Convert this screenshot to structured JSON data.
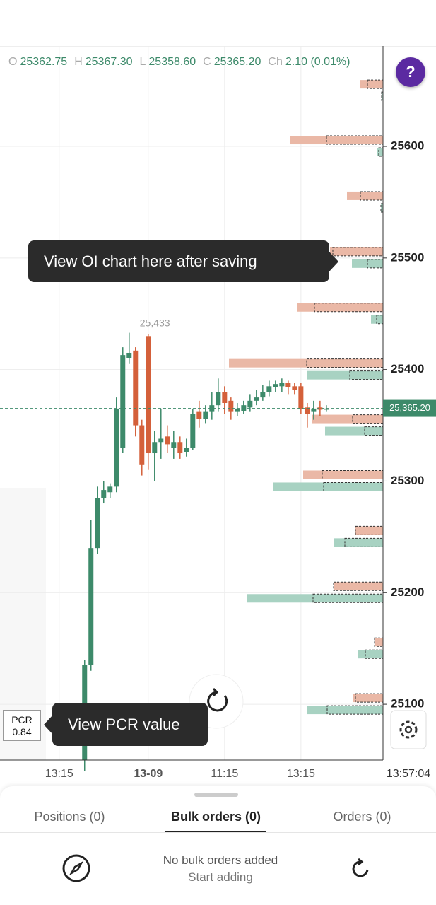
{
  "header": {
    "ohlc": [
      {
        "key": "O",
        "value": "25362.75"
      },
      {
        "key": "H",
        "value": "25367.30"
      },
      {
        "key": "L",
        "value": "25358.60"
      },
      {
        "key": "C",
        "value": "25365.20"
      },
      {
        "key": "Ch",
        "value": "2.10 (0.01%)"
      }
    ],
    "help": "?"
  },
  "chart_data": {
    "type": "candlestick",
    "open": [
      25050,
      25135,
      25240,
      25285,
      25290,
      25295,
      25330,
      25410,
      25417,
      25350,
      25430,
      25325,
      25335,
      25340,
      25330,
      25335,
      25326,
      25330,
      25362,
      25356,
      25362,
      25368,
      25380,
      25372,
      25362,
      25363,
      25366,
      25372,
      25375,
      25380,
      25384,
      25385,
      25388,
      25385,
      25385,
      25366,
      25362,
      25366,
      25364
    ],
    "high": [
      25140,
      25265,
      25295,
      25300,
      25298,
      25375,
      25420,
      25433,
      25420,
      25355,
      25432,
      25345,
      25365,
      25350,
      25345,
      25340,
      25338,
      25365,
      25372,
      25368,
      25380,
      25392,
      25385,
      25375,
      25370,
      25372,
      25378,
      25382,
      25386,
      25390,
      25390,
      25392,
      25390,
      25388,
      25388,
      25370,
      25372,
      25372,
      25368
    ],
    "low": [
      25040,
      25130,
      25235,
      25280,
      25285,
      25290,
      25325,
      25405,
      25340,
      25305,
      25310,
      25300,
      25320,
      25325,
      25320,
      25320,
      25322,
      25328,
      25348,
      25352,
      25355,
      25362,
      25360,
      25355,
      25358,
      25360,
      25362,
      25368,
      25372,
      25376,
      25380,
      25380,
      25378,
      25378,
      25360,
      25348,
      25355,
      25358,
      25362
    ],
    "close": [
      25135,
      25240,
      25285,
      25292,
      25295,
      25365,
      25413,
      25415,
      25350,
      25315,
      25325,
      25335,
      25338,
      25333,
      25335,
      25325,
      25330,
      25360,
      25356,
      25362,
      25368,
      25380,
      25370,
      25362,
      25365,
      25368,
      25372,
      25375,
      25380,
      25385,
      25387,
      25388,
      25384,
      25382,
      25365,
      25360,
      25365,
      25364,
      25365
    ],
    "up_color": "#3d8a6a",
    "down_color": "#d4603a",
    "ylim": [
      25050,
      25690
    ],
    "yticks": [
      {
        "value": 25100,
        "label": "25100"
      },
      {
        "value": 25200,
        "label": "25200"
      },
      {
        "value": 25300,
        "label": "25300"
      },
      {
        "value": 25400,
        "label": "25400"
      },
      {
        "value": 25500,
        "label": "25500"
      },
      {
        "value": 25600,
        "label": "25600"
      }
    ],
    "xlim": [
      -13.3,
      46.9
    ],
    "xticks": [
      {
        "value": -4,
        "label": "13:15"
      },
      {
        "value": 10,
        "label": "13-09"
      },
      {
        "value": 22,
        "label": "11:15"
      },
      {
        "value": 34,
        "label": "13:15"
      }
    ],
    "x_end_label": "13:57:04",
    "last_price": {
      "value": 25365.2,
      "label": "25,365.20"
    },
    "high_annotation": {
      "index": 7,
      "value": 25433,
      "label": "25,433"
    },
    "oi": {
      "strikes": [
        25650,
        25600,
        25550,
        25500,
        25450,
        25400,
        25350,
        25300,
        25250,
        25200,
        25150,
        25100
      ],
      "call_oi": [
        32,
        131,
        51,
        75,
        121,
        218,
        101,
        113,
        39,
        70,
        12,
        43
      ],
      "call_oi_change": [
        22,
        80,
        32,
        71,
        97,
        108,
        43,
        86,
        39,
        70,
        12,
        39
      ],
      "put_oi": [
        2,
        8,
        3,
        44,
        17,
        107,
        82,
        155,
        69,
        193,
        36,
        107
      ],
      "put_oi_change": [
        2,
        6,
        3,
        22,
        9,
        47,
        26,
        84,
        54,
        99,
        25,
        79
      ],
      "call_color": "#eab8a6",
      "put_color": "#a8d2c2",
      "xlim": [
        0,
        250
      ]
    }
  },
  "tooltips": {
    "oi": "View OI chart here after saving",
    "pcr": "View PCR value"
  },
  "pcr": {
    "label": "PCR",
    "value": "0.84"
  },
  "tabs": [
    "Positions (0)",
    "Bulk orders (0)",
    "Orders (0)"
  ],
  "empty": {
    "title": "No bulk orders added",
    "subtitle": "Start adding"
  }
}
